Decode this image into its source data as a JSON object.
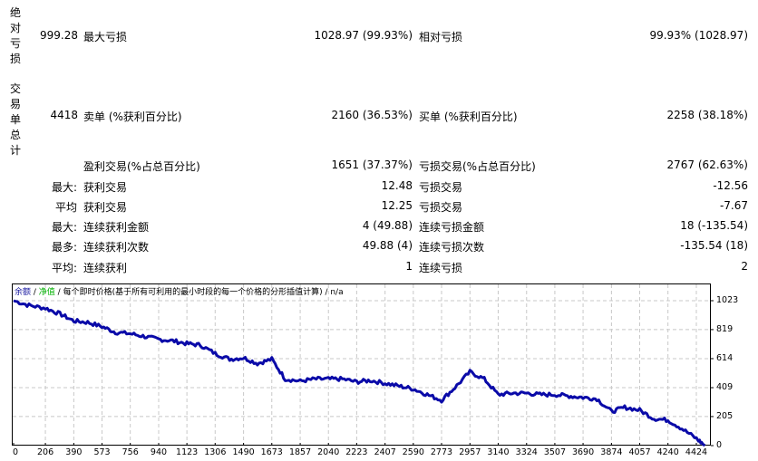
{
  "section_drawdown": {
    "vertical_label": "绝对亏损",
    "value": "999.28",
    "max_label": "最大亏损",
    "max_value": "1028.97 (99.93%)",
    "rel_label": "相对亏损",
    "rel_value": "99.93% (1028.97)"
  },
  "section_trades": {
    "vertical_label": "交易单总计",
    "value": "4418",
    "sell_label": "卖单 (%获利百分比)",
    "sell_value": "2160 (36.53%)",
    "buy_label": "买单 (%获利百分比)",
    "buy_value": "2258 (38.18%)"
  },
  "stats_rows": [
    {
      "prefix": "",
      "left_label": "盈利交易(%占总百分比)",
      "left_value": "1651 (37.37%)",
      "right_label": "亏损交易(%占总百分比)",
      "right_value": "2767 (62.63%)"
    },
    {
      "prefix": "最大:",
      "left_label": "获利交易",
      "left_value": "12.48",
      "right_label": "亏损交易",
      "right_value": "-12.56"
    },
    {
      "prefix": "平均",
      "left_label": "获利交易",
      "left_value": "12.25",
      "right_label": "亏损交易",
      "right_value": "-7.67"
    },
    {
      "prefix": "最大:",
      "left_label": "连续获利金额",
      "left_value": "4 (49.88)",
      "right_label": "连续亏损金额",
      "right_value": "18 (-135.54)"
    },
    {
      "prefix": "最多:",
      "left_label": "连续获利次数",
      "left_value": "49.88 (4)",
      "right_label": "连续亏损次数",
      "right_value": "-135.54 (18)"
    },
    {
      "prefix": "平均:",
      "left_label": "连续获利",
      "left_value": "1",
      "right_label": "连续亏损",
      "right_value": "2"
    }
  ],
  "chart_header": {
    "balance": "余额",
    "sep1": " / ",
    "equity": "净值",
    "sep2": " / ",
    "description": "每个即时价格(基于所有可利用的最小时段的每一个价格的分形插值计算) / n/a"
  },
  "colors": {
    "line": "#0a0aa8",
    "balance_label": "#1a1aa0",
    "equity_label": "#00b000",
    "grid": "#c8c8c8"
  },
  "chart_data": {
    "type": "line",
    "title": "余额 / 净值 / 每个即时价格(基于所有可利用的最小时段的每一个价格的分形插值计算) / n/a",
    "xlabel": "",
    "ylabel": "",
    "x_ticks": [
      "0",
      "206",
      "390",
      "573",
      "756",
      "940",
      "1123",
      "1306",
      "1490",
      "1673",
      "1857",
      "2040",
      "2223",
      "2407",
      "2590",
      "2773",
      "2957",
      "3140",
      "3324",
      "3507",
      "3690",
      "3874",
      "4057",
      "4240",
      "4424"
    ],
    "y_ticks": [
      "0",
      "205",
      "409",
      "614",
      "819",
      "1023"
    ],
    "xlim": [
      0,
      4500
    ],
    "ylim": [
      0,
      1100
    ],
    "grid": true,
    "legend_position": "top-left",
    "series": [
      {
        "name": "余额",
        "x": [
          0,
          100,
          206,
          300,
          390,
          480,
          573,
          660,
          756,
          850,
          940,
          1030,
          1123,
          1210,
          1306,
          1400,
          1490,
          1580,
          1673,
          1760,
          1857,
          1950,
          2040,
          2130,
          2223,
          2310,
          2407,
          2500,
          2590,
          2680,
          2773,
          2860,
          2957,
          3050,
          3140,
          3230,
          3324,
          3410,
          3507,
          3600,
          3690,
          3780,
          3874,
          3960,
          4057,
          4150,
          4240,
          4330,
          4424,
          4480
        ],
        "y": [
          1023,
          990,
          970,
          930,
          880,
          870,
          840,
          800,
          790,
          770,
          750,
          740,
          720,
          710,
          650,
          610,
          620,
          580,
          610,
          470,
          455,
          470,
          470,
          470,
          450,
          460,
          440,
          420,
          400,
          360,
          320,
          410,
          520,
          470,
          360,
          370,
          370,
          360,
          360,
          350,
          340,
          330,
          240,
          270,
          250,
          190,
          180,
          120,
          50,
          0
        ]
      }
    ]
  }
}
